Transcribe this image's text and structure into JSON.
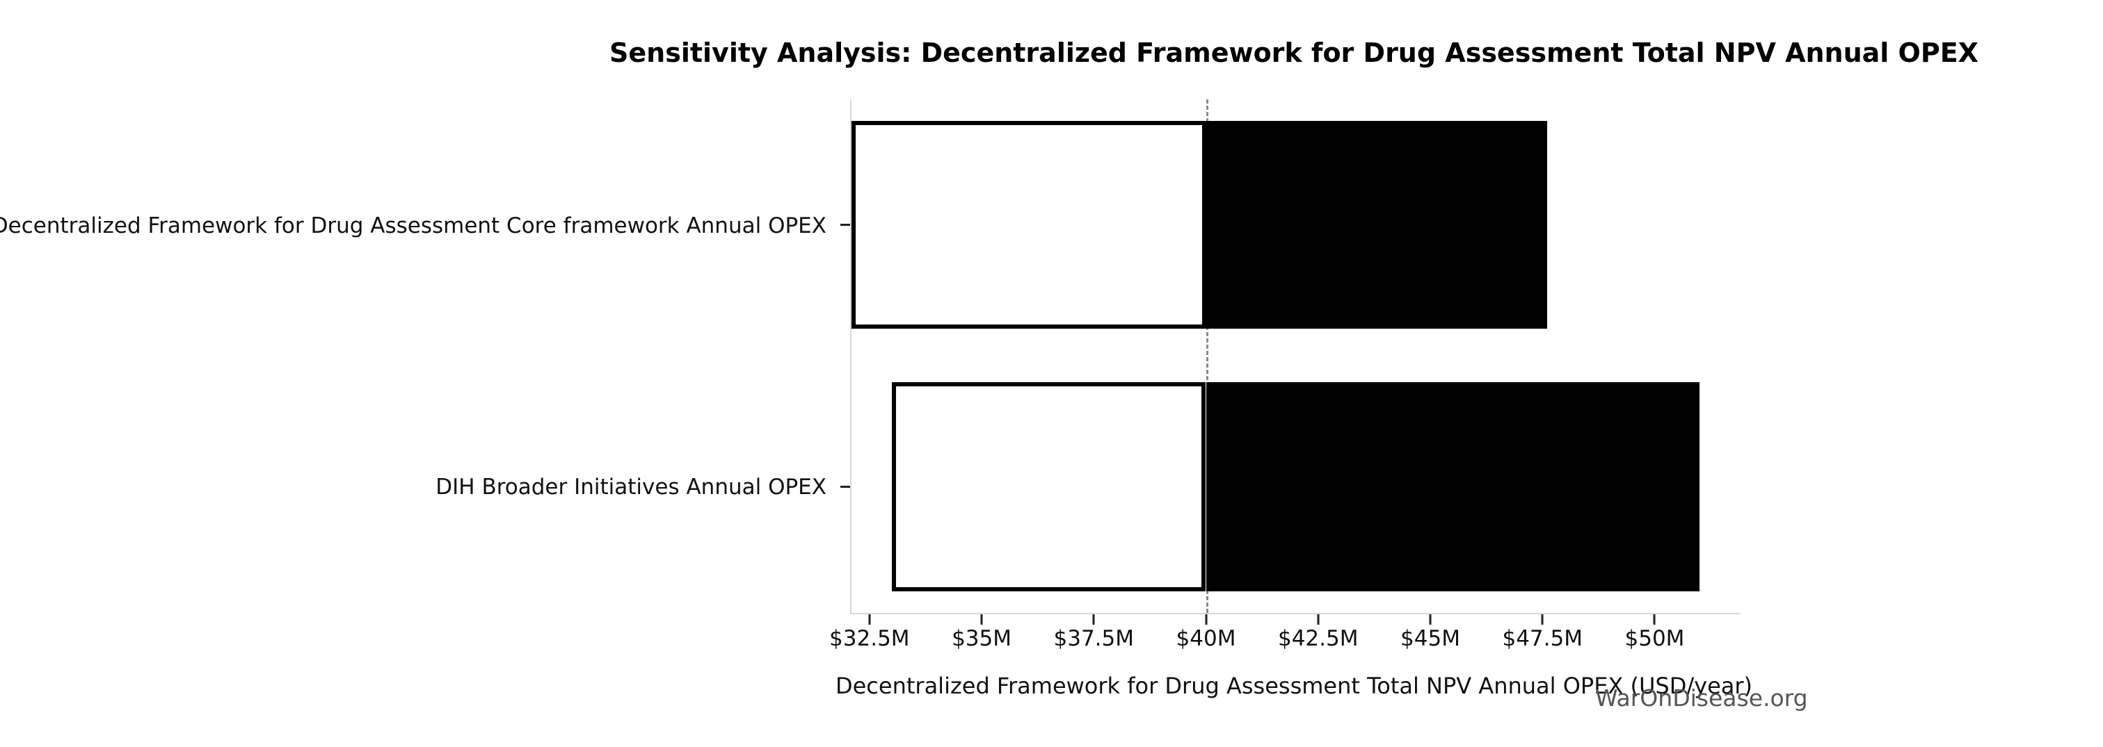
{
  "title": "Sensitivity Analysis: Decentralized Framework for Drug Assessment Total NPV Annual OPEX",
  "watermark": "WarOnDisease.org",
  "chart_data": {
    "type": "bar",
    "variant": "tornado",
    "orientation": "horizontal",
    "title": "Sensitivity Analysis: Decentralized Framework for Drug Assessment Total NPV Annual OPEX",
    "xlabel": "Decentralized Framework for Drug Assessment Total NPV Annual OPEX (USD/year)",
    "ylabel": "",
    "unit": "USD millions per year",
    "categories": [
      "Decentralized Framework for Drug Assessment Core framework Annual OPEX",
      "DIH Broader Initiatives Annual OPEX"
    ],
    "base_value": 40.0,
    "bars": [
      {
        "category": "Decentralized Framework for Drug Assessment Core framework Annual OPEX",
        "low": 32.1,
        "base": 40.0,
        "high": 47.6
      },
      {
        "category": "DIH Broader Initiatives Annual OPEX",
        "low": 33.0,
        "base": 40.0,
        "high": 51.0
      }
    ],
    "series": [
      {
        "name": "low-to-base (white fill)",
        "ranges": [
          [
            32.1,
            40.0
          ],
          [
            33.0,
            40.0
          ]
        ]
      },
      {
        "name": "base-to-high (black fill)",
        "ranges": [
          [
            40.0,
            47.6
          ],
          [
            40.0,
            51.0
          ]
        ]
      }
    ],
    "xlim": [
      32.1,
      51.9
    ],
    "xticks": [
      32.5,
      35,
      37.5,
      40,
      42.5,
      45,
      47.5,
      50
    ],
    "xtick_labels": [
      "$32.5M",
      "$35M",
      "$37.5M",
      "$40M",
      "$42.5M",
      "$45M",
      "$47.5M",
      "$50M"
    ],
    "grid": false,
    "legend": false,
    "colors": {
      "low_fill": "#ffffff",
      "high_fill": "#000000",
      "bar_edge": "#000000",
      "baseline_dash": "#8a8a8a",
      "spine": "#d8d8d8",
      "text": "#111111",
      "watermark": "#555555",
      "background": "#ffffff"
    }
  }
}
